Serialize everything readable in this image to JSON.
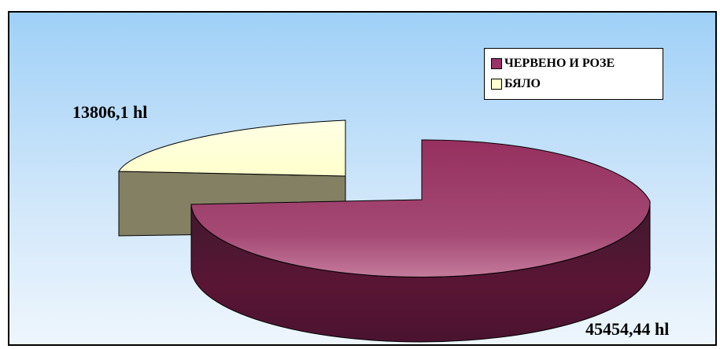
{
  "chart_data": {
    "type": "pie",
    "style": "3d-exploded",
    "title": "",
    "legend_position": "top-right",
    "categories": [
      "ЧЕРВЕНО И РОЗЕ",
      "БЯЛО"
    ],
    "values": [
      45454.44,
      13806.1
    ],
    "data_labels": [
      "45454,44 hl",
      "13806,1 hl"
    ],
    "colors": {
      "red_rose": "#993366",
      "white": "#ffffcc",
      "background_top": "#9fd0f7",
      "background_bottom": "#eaf4fc"
    }
  },
  "legend": {
    "items": [
      {
        "label": "ЧЕРВЕНО И РОЗЕ",
        "color": "#993366"
      },
      {
        "label": "БЯЛО",
        "color": "#ffffcc"
      }
    ]
  },
  "labels": {
    "red_value": "45454,44 hl",
    "white_value": "13806,1 hl"
  }
}
